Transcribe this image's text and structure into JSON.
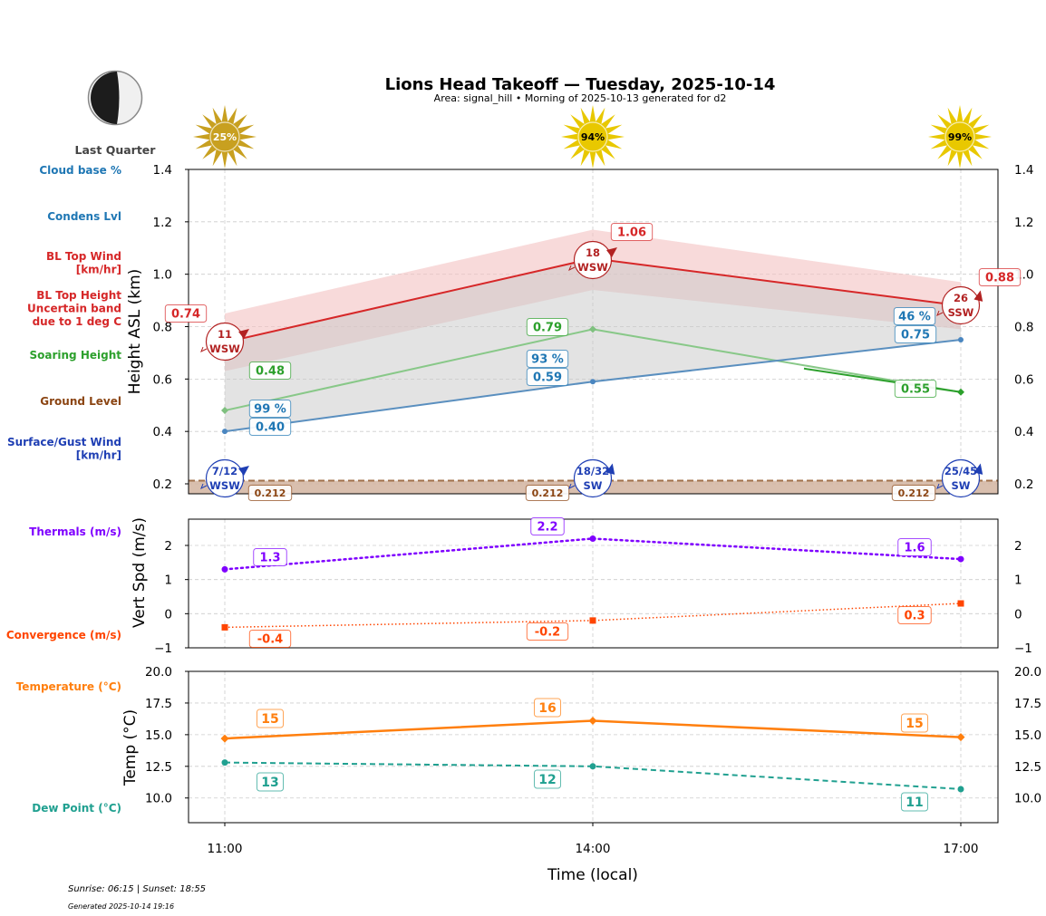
{
  "header": {
    "title": "Lions Head Takeoff — Tuesday, 2025-10-14",
    "subtitle": "Area: signal_hill • Morning of 2025-10-13 generated for d2"
  },
  "moon": {
    "phase_label": "Last Quarter",
    "icon": "moon-last-quarter-icon"
  },
  "footer": {
    "sun_times": "Sunrise: 06:15 | Sunset: 18:55",
    "generated": "Generated 2025-10-14 19:16"
  },
  "colors": {
    "cloud": "#1f77b4",
    "bl_top": "#d62728",
    "bl_band": "#f4c2c2",
    "soaring": "#2ca02c",
    "ground": "#8b4513",
    "ground_fill": "#d2b4a0",
    "surface_wind": "#1f3fb4",
    "thermals": "#7f00ff",
    "convergence": "#ff4500",
    "temperature": "#ff7f0e",
    "dewpoint": "#20a090",
    "sun_dim": "#c8a020",
    "sun_bright": "#e8c800"
  },
  "chart_data": [
    {
      "type": "line",
      "name": "heights",
      "x": [
        "11:00",
        "14:00",
        "17:00"
      ],
      "ylabel": "Height ASL (km)",
      "ylim": [
        0.162,
        1.4
      ],
      "yticks": [
        "0.2",
        "0.4",
        "0.6",
        "0.8",
        "1.0",
        "1.2",
        "1.4"
      ],
      "ytick_values": [
        0.2,
        0.4,
        0.6,
        0.8,
        1.0,
        1.2,
        1.4
      ],
      "grid": true,
      "legend_left": [
        {
          "label": "Cloud base %",
          "color_key": "cloud"
        },
        {
          "label": "Condens Lvl",
          "color_key": "cloud"
        },
        {
          "label": "BL Top Wind\n[km/hr]",
          "color_key": "bl_top"
        },
        {
          "label": "BL Top Height\nUncertain band\ndue to 1 deg C",
          "color_key": "bl_top"
        },
        {
          "label": "Soaring Height",
          "color_key": "soaring"
        },
        {
          "label": "Ground Level",
          "color_key": "ground"
        },
        {
          "label": "Surface/Gust Wind\n[km/hr]",
          "color_key": "surface_wind"
        }
      ],
      "sun_percent": [
        "25%",
        "94%",
        "99%"
      ],
      "series": [
        {
          "name": "BL Top Height",
          "values": [
            0.74,
            1.06,
            0.88
          ],
          "labels": [
            "0.74",
            "1.06",
            "0.88"
          ]
        },
        {
          "name": "BL Top Band Upper",
          "values": [
            0.85,
            1.17,
            0.97
          ]
        },
        {
          "name": "BL Top Band Lower",
          "values": [
            0.63,
            0.94,
            0.79
          ]
        },
        {
          "name": "Soaring Height",
          "values": [
            0.48,
            0.79,
            0.55
          ],
          "labels": [
            "0.48",
            "0.79",
            "0.55"
          ]
        },
        {
          "name": "Condens Lvl",
          "values": [
            0.4,
            0.59,
            0.75
          ],
          "labels": [
            "0.40",
            "0.59",
            "0.75"
          ]
        },
        {
          "name": "Cloud base %",
          "values": [
            99,
            93,
            46
          ],
          "labels": [
            "99 %",
            "93 %",
            "46 %"
          ]
        },
        {
          "name": "Ground Level",
          "values": [
            0.212,
            0.212,
            0.212
          ],
          "labels": [
            "0.212",
            "0.212",
            "0.212"
          ]
        }
      ],
      "bl_top_wind": [
        {
          "speed": "11",
          "dir": "WSW"
        },
        {
          "speed": "18",
          "dir": "WSW"
        },
        {
          "speed": "26",
          "dir": "SSW"
        }
      ],
      "surface_wind": [
        {
          "speed": "7/12",
          "dir": "WSW"
        },
        {
          "speed": "18/32",
          "dir": "SW"
        },
        {
          "speed": "25/45",
          "dir": "SW"
        }
      ]
    },
    {
      "type": "line",
      "name": "vertical-speed",
      "x": [
        "11:00",
        "14:00",
        "17:00"
      ],
      "ylabel": "Vert Spd (m/s)",
      "ylim": [
        -1,
        2.77
      ],
      "yticks": [
        "−1",
        "0",
        "1",
        "2"
      ],
      "ytick_values": [
        -1,
        0,
        1,
        2
      ],
      "grid": true,
      "legend_left": [
        {
          "label": "Thermals (m/s)",
          "color_key": "thermals"
        },
        {
          "label": "Convergence (m/s)",
          "color_key": "convergence"
        }
      ],
      "series": [
        {
          "name": "Thermals",
          "values": [
            1.3,
            2.2,
            1.6
          ],
          "labels": [
            "1.3",
            "2.2",
            "1.6"
          ]
        },
        {
          "name": "Convergence",
          "values": [
            -0.4,
            -0.2,
            0.3
          ],
          "labels": [
            "-0.4",
            "-0.2",
            "0.3"
          ]
        }
      ]
    },
    {
      "type": "line",
      "name": "temperature",
      "x": [
        "11:00",
        "14:00",
        "17:00"
      ],
      "xlabel": "Time (local)",
      "ylabel": "Temp (°C)",
      "ylim": [
        8.05,
        20.0
      ],
      "yticks": [
        "10.0",
        "12.5",
        "15.0",
        "17.5",
        "20.0"
      ],
      "ytick_values": [
        10.0,
        12.5,
        15.0,
        17.5,
        20.0
      ],
      "grid": true,
      "legend_left": [
        {
          "label": "Temperature (°C)",
          "color_key": "temperature"
        },
        {
          "label": "Dew Point (°C)",
          "color_key": "dewpoint"
        }
      ],
      "series": [
        {
          "name": "Temperature",
          "values": [
            14.7,
            16.1,
            14.8
          ],
          "labels": [
            "15",
            "16",
            "15"
          ]
        },
        {
          "name": "Dew Point",
          "values": [
            12.8,
            12.5,
            10.7
          ],
          "labels": [
            "13",
            "12",
            "11"
          ]
        }
      ]
    }
  ]
}
